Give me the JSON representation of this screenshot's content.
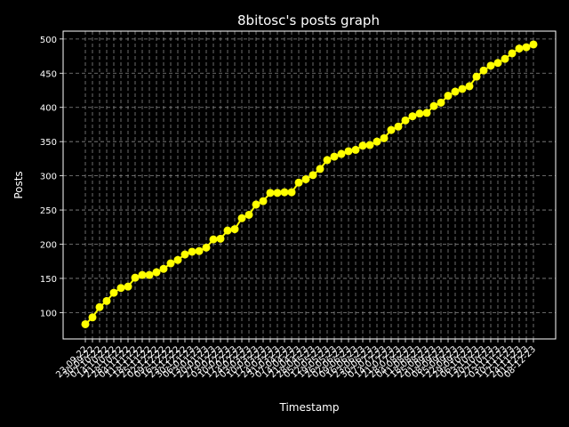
{
  "chart_data": {
    "type": "line",
    "title": "8bitosc's posts graph",
    "x_label": "Timestamp",
    "y_label": "Posts",
    "categories": [
      "23-09-22",
      "30-09-22",
      "07-10-22",
      "14-10-22",
      "21-10-22",
      "28-10-22",
      "04-11-22",
      "11-11-22",
      "18-11-22",
      "25-11-22",
      "02-12-22",
      "09-12-22",
      "16-12-22",
      "23-12-22",
      "30-12-22",
      "06-01-23",
      "13-01-23",
      "20-01-23",
      "27-01-23",
      "03-02-23",
      "10-02-23",
      "17-02-23",
      "24-02-23",
      "03-03-23",
      "10-03-23",
      "17-03-23",
      "24-03-23",
      "31-03-23",
      "07-04-23",
      "14-04-23",
      "21-04-23",
      "28-04-23",
      "05-05-23",
      "12-05-23",
      "19-05-23",
      "26-05-23",
      "02-06-23",
      "09-06-23",
      "16-06-23",
      "23-06-23",
      "30-06-23",
      "07-07-23",
      "14-07-23",
      "21-07-23",
      "28-07-23",
      "04-08-23",
      "11-08-23",
      "18-08-23",
      "25-08-23",
      "01-09-23",
      "08-09-23",
      "15-09-23",
      "22-09-23",
      "29-09-23",
      "06-10-23",
      "13-10-23",
      "20-10-23",
      "27-10-23",
      "03-11-23",
      "10-11-23",
      "17-11-23",
      "24-11-23",
      "01-12-23",
      "08-12-23"
    ],
    "series": [
      {
        "name": "Posts",
        "color": "#ffff00",
        "values": [
          83,
          93,
          108,
          117,
          129,
          136,
          138,
          151,
          155,
          155,
          159,
          164,
          172,
          177,
          185,
          189,
          190,
          195,
          207,
          208,
          220,
          222,
          238,
          243,
          258,
          263,
          275,
          275,
          276,
          276,
          290,
          295,
          301,
          310,
          323,
          328,
          332,
          336,
          338,
          344,
          345,
          350,
          355,
          367,
          372,
          381,
          387,
          391,
          392,
          402,
          407,
          417,
          423,
          427,
          431,
          445,
          454,
          461,
          465,
          471,
          479,
          486,
          488,
          492
        ]
      }
    ],
    "ylim": [
      61.5,
      511.5
    ],
    "yticks": [
      100,
      150,
      200,
      250,
      300,
      350,
      400,
      450,
      500
    ],
    "grid": true
  }
}
